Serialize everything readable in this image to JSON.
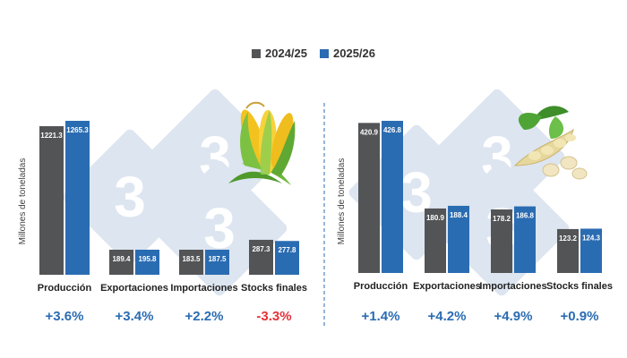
{
  "legend": [
    {
      "label": "2024/25",
      "color": "#535456"
    },
    {
      "label": "2025/26",
      "color": "#2a6cb2"
    }
  ],
  "colors": {
    "positive": "#2a6cb2",
    "negative": "#e53238",
    "value_label": "#ffffff",
    "watermark": "#dde5f0"
  },
  "chart_data": [
    {
      "type": "bar",
      "ylabel": "Millones de toneladas",
      "categories": [
        "Producción",
        "Exportaciones",
        "Importaciones",
        "Stocks finales"
      ],
      "series": [
        {
          "name": "2024/25",
          "values": [
            1221.3,
            189.4,
            183.5,
            287.3
          ]
        },
        {
          "name": "2025/26",
          "values": [
            1265.3,
            195.8,
            187.5,
            277.8
          ]
        }
      ],
      "changes": [
        "+3.6%",
        "+3.4%",
        "+2.2%",
        "-3.3%"
      ],
      "icon": "corn-icon"
    },
    {
      "type": "bar",
      "ylabel": "Millones de toneladas",
      "categories": [
        "Producción",
        "Exportaciones",
        "Importaciones",
        "Stocks finales"
      ],
      "series": [
        {
          "name": "2024/25",
          "values": [
            420.9,
            180.9,
            178.2,
            123.2
          ]
        },
        {
          "name": "2025/26",
          "values": [
            426.8,
            188.4,
            186.8,
            124.3
          ]
        }
      ],
      "changes": [
        "+1.4%",
        "+4.2%",
        "+4.9%",
        "+0.9%"
      ],
      "icon": "soybean-icon"
    }
  ]
}
